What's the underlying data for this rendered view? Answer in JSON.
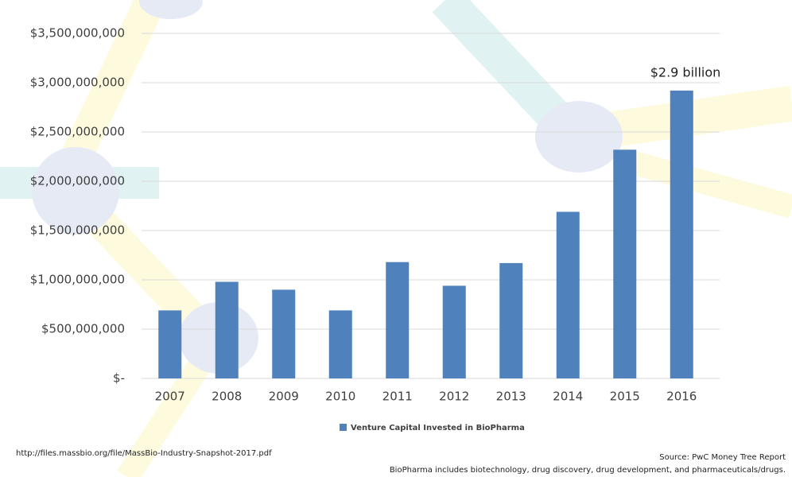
{
  "chart_data": {
    "type": "bar",
    "categories": [
      "2007",
      "2008",
      "2009",
      "2010",
      "2011",
      "2012",
      "2013",
      "2014",
      "2015",
      "2016"
    ],
    "series": [
      {
        "name": "Venture Capital Invested in BioPharma",
        "color": "#4f81bd",
        "values": [
          690000000,
          980000000,
          900000000,
          690000000,
          1180000000,
          940000000,
          1170000000,
          1690000000,
          2320000000,
          2920000000
        ]
      }
    ],
    "ylim": [
      0,
      3500000000
    ],
    "yticks": [
      {
        "value": 0,
        "label": "$-"
      },
      {
        "value": 500000000,
        "label": "$500,000,000"
      },
      {
        "value": 1000000000,
        "label": "$1,000,000,000"
      },
      {
        "value": 1500000000,
        "label": "$1,500,000,000"
      },
      {
        "value": 2000000000,
        "label": "$2,000,000,000"
      },
      {
        "value": 2500000000,
        "label": "$2,500,000,000"
      },
      {
        "value": 3000000000,
        "label": "$3,000,000,000"
      },
      {
        "value": 3500000000,
        "label": "$3,500,000,000"
      }
    ],
    "grid": true,
    "annotation": "$2.9 billion",
    "source_url": "http://files.massbio.org/file/MassBio-Industry-Snapshot-2017.pdf",
    "source": "Source: PwC Money Tree Report",
    "note": "BioPharma includes biotechnology, drug discovery, drug development, and pharmaceuticals/drugs."
  }
}
